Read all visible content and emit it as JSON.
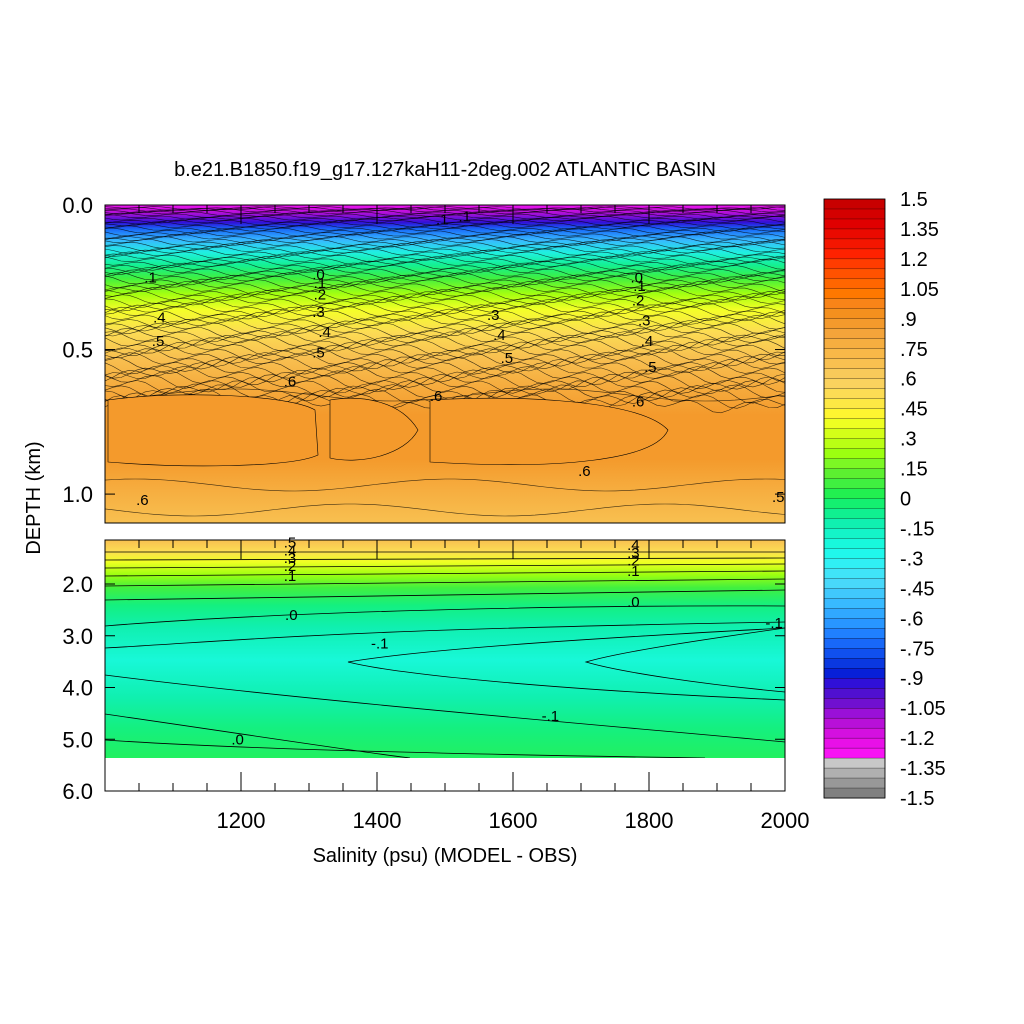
{
  "chart_data": {
    "type": "heatmap",
    "title": "b.e21.B1850.f19_g17.127kaH11-2deg.002 ATLANTIC BASIN",
    "xlabel": "Salinity (psu) (MODEL - OBS)",
    "ylabel": "DEPTH (km)",
    "xlim": [
      1000,
      2000
    ],
    "x_ticks": [
      1200,
      1400,
      1600,
      1800,
      2000
    ],
    "x_tick_labels": [
      "1200",
      "1400",
      "1600",
      "1800",
      "2000"
    ],
    "upper_panel": {
      "ylim": [
        0.0,
        1.1
      ],
      "y_ticks": [
        0.0,
        0.5,
        1.0
      ],
      "y_tick_labels": [
        "0.0",
        "0.5",
        "1.0"
      ],
      "contour_labels": [
        {
          "text": ".1",
          "x": 1067,
          "y": 0.25
        },
        {
          "text": ".4",
          "x": 1080,
          "y": 0.39
        },
        {
          "text": ".5",
          "x": 1078,
          "y": 0.47
        },
        {
          "text": ".6",
          "x": 1272,
          "y": 0.61
        },
        {
          "text": ".6",
          "x": 1487,
          "y": 0.66
        },
        {
          "text": ".6",
          "x": 1784,
          "y": 0.68
        },
        {
          "text": ".6",
          "x": 1705,
          "y": 0.92
        },
        {
          "text": ".6",
          "x": 1055,
          "y": 1.02
        },
        {
          "text": ".5",
          "x": 1990,
          "y": 1.01
        },
        {
          "text": ".3",
          "x": 1314,
          "y": 0.37
        },
        {
          "text": ".4",
          "x": 1323,
          "y": 0.44
        },
        {
          "text": ".5",
          "x": 1314,
          "y": 0.51
        },
        {
          "text": ".3",
          "x": 1571,
          "y": 0.38
        },
        {
          "text": ".4",
          "x": 1580,
          "y": 0.45
        },
        {
          "text": ".5",
          "x": 1591,
          "y": 0.53
        },
        {
          "text": ".3",
          "x": 1793,
          "y": 0.4
        },
        {
          "text": ".4",
          "x": 1797,
          "y": 0.47
        },
        {
          "text": ".5",
          "x": 1802,
          "y": 0.56
        },
        {
          "text": ".2",
          "x": 1316,
          "y": 0.31
        },
        {
          "text": ".2",
          "x": 1784,
          "y": 0.33
        },
        {
          "text": ".1",
          "x": 1786,
          "y": 0.28
        },
        {
          "text": ".0",
          "x": 1782,
          "y": 0.25
        },
        {
          "text": ".0",
          "x": 1314,
          "y": 0.24
        },
        {
          "text": ".1",
          "x": 1316,
          "y": 0.27
        },
        {
          "text": ".1",
          "x": 1529,
          "y": 0.04
        },
        {
          "text": ".1",
          "x": 1496,
          "y": 0.05
        }
      ]
    },
    "lower_panel": {
      "ylim": [
        1.1,
        6.0
      ],
      "y_ticks": [
        2.0,
        3.0,
        4.0,
        5.0,
        6.0
      ],
      "y_tick_labels": [
        "2.0",
        "3.0",
        "4.0",
        "5.0",
        "6.0"
      ],
      "contour_labels": [
        {
          "text": ".5",
          "x": 1272,
          "y": 1.2
        },
        {
          "text": ".4",
          "x": 1272,
          "y": 1.35
        },
        {
          "text": ".3",
          "x": 1272,
          "y": 1.5
        },
        {
          "text": ".2",
          "x": 1272,
          "y": 1.65
        },
        {
          "text": ".1",
          "x": 1272,
          "y": 1.85
        },
        {
          "text": ".0",
          "x": 1274,
          "y": 2.6
        },
        {
          "text": ".4",
          "x": 1777,
          "y": 1.25
        },
        {
          "text": ".3",
          "x": 1777,
          "y": 1.4
        },
        {
          "text": ".2",
          "x": 1777,
          "y": 1.55
        },
        {
          "text": ".1",
          "x": 1777,
          "y": 1.75
        },
        {
          "text": ".0",
          "x": 1777,
          "y": 2.35
        },
        {
          "text": "-.1",
          "x": 1404,
          "y": 3.15
        },
        {
          "text": "-.1",
          "x": 1984,
          "y": 2.75
        },
        {
          "text": "-.1",
          "x": 1655,
          "y": 4.55
        },
        {
          "text": ".0",
          "x": 1195,
          "y": 5.0
        }
      ]
    },
    "colorbar": {
      "labels": [
        "1.5",
        "1.35",
        "1.2",
        "1.05",
        ".9",
        ".75",
        ".6",
        ".45",
        ".3",
        ".15",
        "0",
        "-.15",
        "-.3",
        "-.45",
        "-.6",
        "-.75",
        "-.9",
        "-1.05",
        "-1.2",
        "-1.35",
        "-1.5"
      ],
      "colors": [
        "#c80000",
        "#d40000",
        "#e00000",
        "#ea0a00",
        "#f41600",
        "#ff2200",
        "#ff3c00",
        "#ff5200",
        "#ff6600",
        "#ff7800",
        "#f88418",
        "#f4901e",
        "#f49a2c",
        "#f4a43a",
        "#f6ae40",
        "#f8b848",
        "#f8c050",
        "#f8ca5a",
        "#fad25e",
        "#fcdc54",
        "#fde844",
        "#fef530",
        "#eeff22",
        "#d4ff18",
        "#baff14",
        "#9cff10",
        "#7cf824",
        "#5cf030",
        "#40f040",
        "#22f050",
        "#14f070",
        "#10f090",
        "#10f0b0",
        "#14f4c8",
        "#18f8dc",
        "#20f8ec",
        "#30f0f4",
        "#40e4f8",
        "#48d8fa",
        "#40c8fc",
        "#38baff",
        "#30a8ff",
        "#2896ff",
        "#2080ff",
        "#1868f8",
        "#1050ee",
        "#0a38e0",
        "#0820d8",
        "#3010d8",
        "#5010d0",
        "#7010d0",
        "#9a10d8",
        "#b810d8",
        "#d410e0",
        "#e810e8",
        "#f814f4",
        "#c8c8c8",
        "#b0b0b0",
        "#989898",
        "#808080"
      ]
    }
  }
}
